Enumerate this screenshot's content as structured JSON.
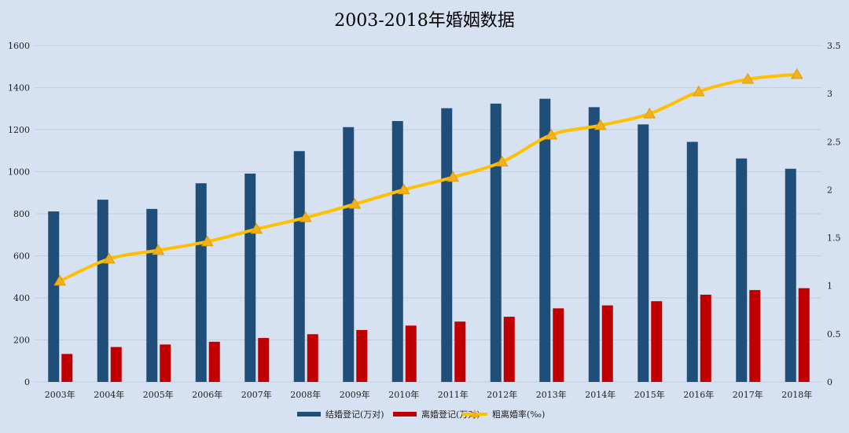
{
  "chart_data": {
    "type": "bar",
    "title": "2003-2018年婚姻数据",
    "categories": [
      "2003年",
      "2004年",
      "2005年",
      "2006年",
      "2007年",
      "2008年",
      "2009年",
      "2010年",
      "2011年",
      "2012年",
      "2013年",
      "2014年",
      "2015年",
      "2016年",
      "2017年",
      "2018年"
    ],
    "y_left": {
      "ticks": [
        "0",
        "200",
        "400",
        "600",
        "800",
        "1000",
        "1200",
        "1400",
        "1600"
      ],
      "range": [
        0,
        1600
      ]
    },
    "y_right": {
      "ticks": [
        "0",
        "0.5",
        "1",
        "1.5",
        "2",
        "2.5",
        "3",
        "3.5"
      ],
      "range": [
        0,
        3.5
      ]
    },
    "grid": true,
    "legend_position": "bottom",
    "series": [
      {
        "name": "结婚登记(万对)",
        "kind": "bar",
        "axis": "left",
        "color": "#1f4e79",
        "values": [
          811,
          867,
          823,
          945,
          991,
          1098,
          1212,
          1241,
          1302,
          1324,
          1347,
          1307,
          1225,
          1142,
          1063,
          1014
        ]
      },
      {
        "name": "离婚登记(万对)",
        "kind": "bar",
        "axis": "left",
        "color": "#c00000",
        "values": [
          133,
          166,
          178,
          191,
          209,
          227,
          247,
          268,
          287,
          310,
          350,
          364,
          384,
          415,
          437,
          446
        ]
      },
      {
        "name": "粗离婚率(‰)",
        "kind": "line",
        "axis": "right",
        "color": "#ffc000",
        "values": [
          1.05,
          1.28,
          1.37,
          1.46,
          1.59,
          1.71,
          1.85,
          2.0,
          2.13,
          2.29,
          2.57,
          2.67,
          2.79,
          3.02,
          3.15,
          3.2
        ]
      }
    ]
  }
}
